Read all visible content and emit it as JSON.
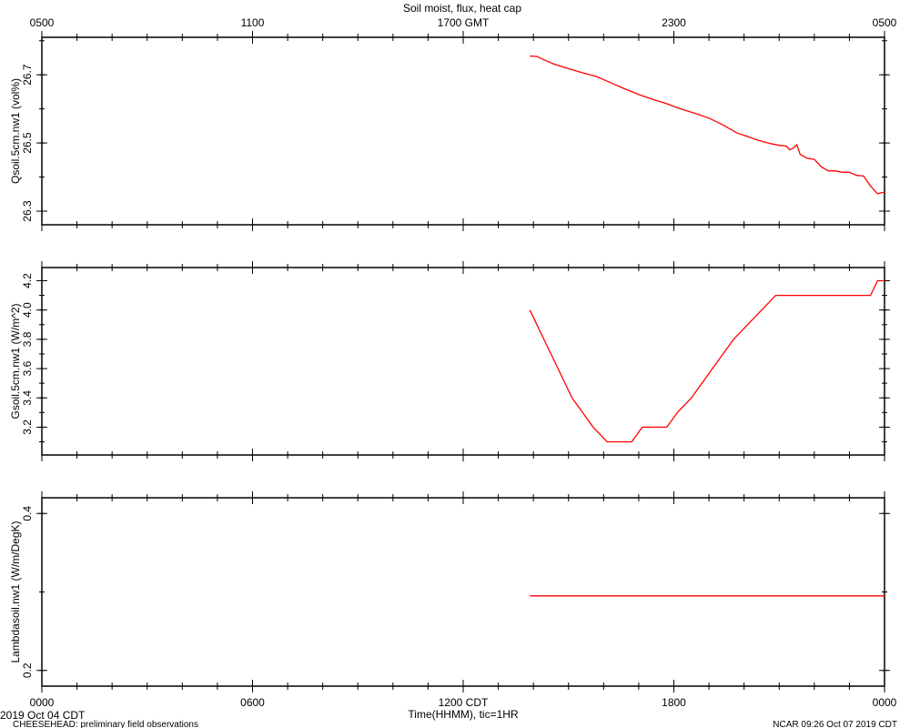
{
  "title": "Soil moist, flux, heat cap",
  "top_axis": {
    "ticks": [
      "0500",
      "1100",
      "1700 GMT",
      "2300",
      "0500"
    ]
  },
  "bottom_axis": {
    "ticks": [
      "0000",
      "0600",
      "1200 CDT",
      "1800",
      "0000"
    ],
    "label": "Time(HHMM), tic=1HR"
  },
  "footer": {
    "date": "2019 Oct 04 CDT",
    "note": "CHEESEHEAD: preliminary field observations",
    "stamp": "NCAR 09:26 Oct 07 2019 CDT"
  },
  "colors": {
    "series": "#ff0000",
    "axes": "#000000"
  },
  "chart_data": [
    {
      "type": "line",
      "ylabel": "Qsoil.5cm.nw1 (vol%)",
      "xlim": [
        0,
        24
      ],
      "ylim": [
        26.26,
        26.81
      ],
      "yticks": [
        "26.3",
        "26.5",
        "26.7"
      ],
      "yticks_val": [
        26.3,
        26.5,
        26.7
      ],
      "series": [
        {
          "values": [
            [
              13.9,
              26.755
            ],
            [
              14.1,
              26.754
            ],
            [
              14.3,
              26.744
            ],
            [
              14.6,
              26.731
            ],
            [
              15.0,
              26.718
            ],
            [
              15.4,
              26.706
            ],
            [
              15.8,
              26.695
            ],
            [
              16.2,
              26.677
            ],
            [
              16.6,
              26.659
            ],
            [
              17.0,
              26.642
            ],
            [
              17.4,
              26.628
            ],
            [
              17.8,
              26.615
            ],
            [
              18.2,
              26.6
            ],
            [
              18.6,
              26.587
            ],
            [
              19.0,
              26.573
            ],
            [
              19.4,
              26.553
            ],
            [
              19.8,
              26.529
            ],
            [
              20.1,
              26.519
            ],
            [
              20.4,
              26.508
            ],
            [
              20.8,
              26.497
            ],
            [
              21.0,
              26.493
            ],
            [
              21.2,
              26.491
            ],
            [
              21.3,
              26.48
            ],
            [
              21.4,
              26.485
            ],
            [
              21.5,
              26.495
            ],
            [
              21.6,
              26.466
            ],
            [
              21.8,
              26.455
            ],
            [
              22.0,
              26.452
            ],
            [
              22.2,
              26.43
            ],
            [
              22.4,
              26.418
            ],
            [
              22.6,
              26.418
            ],
            [
              22.8,
              26.414
            ],
            [
              23.0,
              26.414
            ],
            [
              23.2,
              26.405
            ],
            [
              23.4,
              26.403
            ],
            [
              23.6,
              26.374
            ],
            [
              23.8,
              26.351
            ],
            [
              24.0,
              26.356
            ]
          ]
        }
      ]
    },
    {
      "type": "line",
      "ylabel": "Gsoil.5cm.nw1 (W/m^2)",
      "xlim": [
        0,
        24
      ],
      "ylim": [
        3.01,
        4.29
      ],
      "yticks": [
        "3.2",
        "3.4",
        "3.6",
        "3.8",
        "4.0",
        "4.2"
      ],
      "yticks_val": [
        3.2,
        3.4,
        3.6,
        3.8,
        4.0,
        4.2
      ],
      "series": [
        {
          "values": [
            [
              13.9,
              4.0
            ],
            [
              14.1,
              3.9
            ],
            [
              14.3,
              3.8
            ],
            [
              14.5,
              3.7
            ],
            [
              14.7,
              3.6
            ],
            [
              14.9,
              3.5
            ],
            [
              15.1,
              3.4
            ],
            [
              15.4,
              3.3
            ],
            [
              15.7,
              3.2
            ],
            [
              16.1,
              3.1
            ],
            [
              16.8,
              3.1
            ],
            [
              17.1,
              3.2
            ],
            [
              17.8,
              3.2
            ],
            [
              18.1,
              3.3
            ],
            [
              18.5,
              3.4
            ],
            [
              18.8,
              3.5
            ],
            [
              19.1,
              3.6
            ],
            [
              19.4,
              3.7
            ],
            [
              19.7,
              3.8
            ],
            [
              20.1,
              3.9
            ],
            [
              20.5,
              4.0
            ],
            [
              20.9,
              4.1
            ],
            [
              22.0,
              4.1
            ],
            [
              23.0,
              4.1
            ],
            [
              23.6,
              4.1
            ],
            [
              23.8,
              4.2
            ],
            [
              24.0,
              4.2
            ]
          ]
        }
      ]
    },
    {
      "type": "line",
      "ylabel": "Lambdasoil.nw1 (W/m/DegK)",
      "xlim": [
        0,
        24
      ],
      "ylim": [
        0.18,
        0.42
      ],
      "yticks": [
        "0.2",
        "0.4"
      ],
      "yticks_val": [
        0.2,
        0.4
      ],
      "series": [
        {
          "values": [
            [
              13.9,
              0.295
            ],
            [
              24.0,
              0.295
            ]
          ]
        }
      ]
    }
  ]
}
